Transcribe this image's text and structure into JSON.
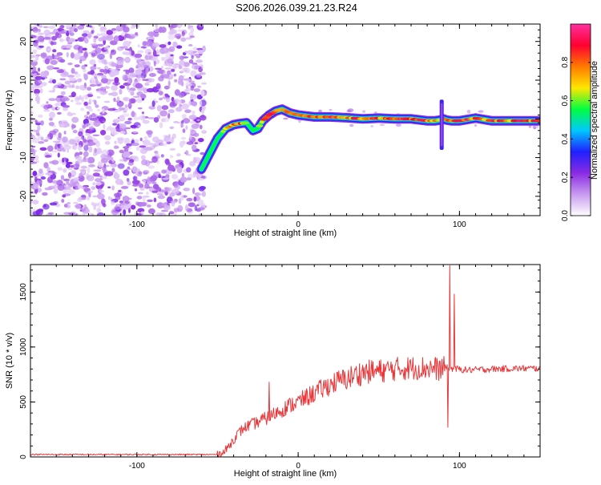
{
  "page_title": "S206.2026.039.21.23.R24",
  "chart_data": [
    {
      "type": "heatmap",
      "title": "",
      "xlabel": "Height of straight line (km)",
      "ylabel": "Frequency (Hz)",
      "xlim": [
        -166,
        150
      ],
      "ylim": [
        -25,
        24.5
      ],
      "x_ticks": [
        -100,
        0,
        100
      ],
      "y_ticks": [
        -20,
        -10,
        0,
        10,
        20
      ],
      "x_tick_labels": [
        "-100",
        "0",
        "100"
      ],
      "y_tick_labels": [
        "-20",
        "-10",
        "0",
        "10",
        "20"
      ],
      "colorbar": {
        "label": "Normalized spectral amplitude",
        "range": [
          0.0,
          1.0
        ],
        "ticks": [
          0.0,
          0.2,
          0.4,
          0.6,
          0.8
        ],
        "tick_labels": [
          "0.0",
          "0.2",
          "0.4",
          "0.6",
          "0.8"
        ],
        "colormap": [
          "#ffffff",
          "#c89bf0",
          "#8a2be2",
          "#1f20ff",
          "#00c8ff",
          "#00ff40",
          "#ffe600",
          "#ff7a00",
          "#ff0030",
          "#ff30a0"
        ]
      },
      "noise_region_x": [
        -166,
        -58
      ],
      "ridge": {
        "x": [
          -60,
          -55,
          -50,
          -45,
          -40,
          -36,
          -32,
          -28,
          -25,
          -22,
          -18,
          -14,
          -10,
          -5,
          0,
          10,
          20,
          30,
          40,
          50,
          60,
          70,
          80,
          85,
          88,
          90,
          92,
          95,
          100,
          110,
          120,
          130,
          140,
          150
        ],
        "y": [
          -13,
          -9,
          -5,
          -2.5,
          -1.5,
          -1.2,
          -1.0,
          -3.0,
          -2.5,
          -0.5,
          1.0,
          2.0,
          2.5,
          1.5,
          1.0,
          0.5,
          0.5,
          0.3,
          0.0,
          0.2,
          0.0,
          0.0,
          -0.5,
          -0.5,
          -0.3,
          0.0,
          -0.3,
          -0.5,
          -0.5,
          0.2,
          -0.5,
          -0.5,
          -0.5,
          -0.5
        ],
        "peak": [
          0.45,
          0.55,
          0.6,
          0.75,
          0.9,
          0.85,
          0.7,
          0.55,
          0.6,
          0.8,
          0.9,
          0.95,
          0.9,
          0.9,
          0.95,
          0.9,
          0.95,
          0.85,
          0.9,
          0.9,
          0.95,
          0.9,
          0.9,
          0.85,
          0.8,
          0.85,
          0.8,
          0.85,
          0.9,
          0.9,
          0.9,
          0.85,
          0.95,
          0.9
        ]
      },
      "spikes": [
        {
          "x": 89,
          "y_range": [
            -8,
            5
          ]
        }
      ]
    },
    {
      "type": "line",
      "title": "",
      "xlabel": "Height of straight line (km)",
      "ylabel": "SNR (10 * v/v)",
      "xlim": [
        -166,
        150
      ],
      "ylim": [
        0,
        1750
      ],
      "x_ticks": [
        -100,
        0,
        100
      ],
      "y_ticks": [
        0,
        500,
        1000,
        1500
      ],
      "x_tick_labels": [
        "-100",
        "0",
        "100"
      ],
      "y_tick_labels": [
        "0",
        "500",
        "1000",
        "1500"
      ],
      "line_color": "#e8373a",
      "envelope": {
        "x": [
          -166,
          -50,
          -46,
          -42,
          -38,
          -34,
          -30,
          -26,
          -22,
          -18,
          -14,
          -10,
          -5,
          0,
          5,
          10,
          15,
          20,
          25,
          30,
          35,
          40,
          50,
          60,
          70,
          80,
          88,
          92,
          98,
          105,
          120,
          135,
          150
        ],
        "y": [
          22,
          22,
          40,
          120,
          200,
          260,
          290,
          310,
          340,
          360,
          400,
          430,
          470,
          500,
          540,
          580,
          620,
          660,
          690,
          710,
          740,
          770,
          780,
          800,
          810,
          810,
          800,
          810,
          800,
          790,
          800,
          805,
          805
        ]
      },
      "spikes": [
        {
          "x": -18,
          "y": 680
        },
        {
          "x": 94,
          "y": 1740
        },
        {
          "x": 93,
          "y": 270
        },
        {
          "x": 97,
          "y": 1480
        }
      ]
    }
  ]
}
